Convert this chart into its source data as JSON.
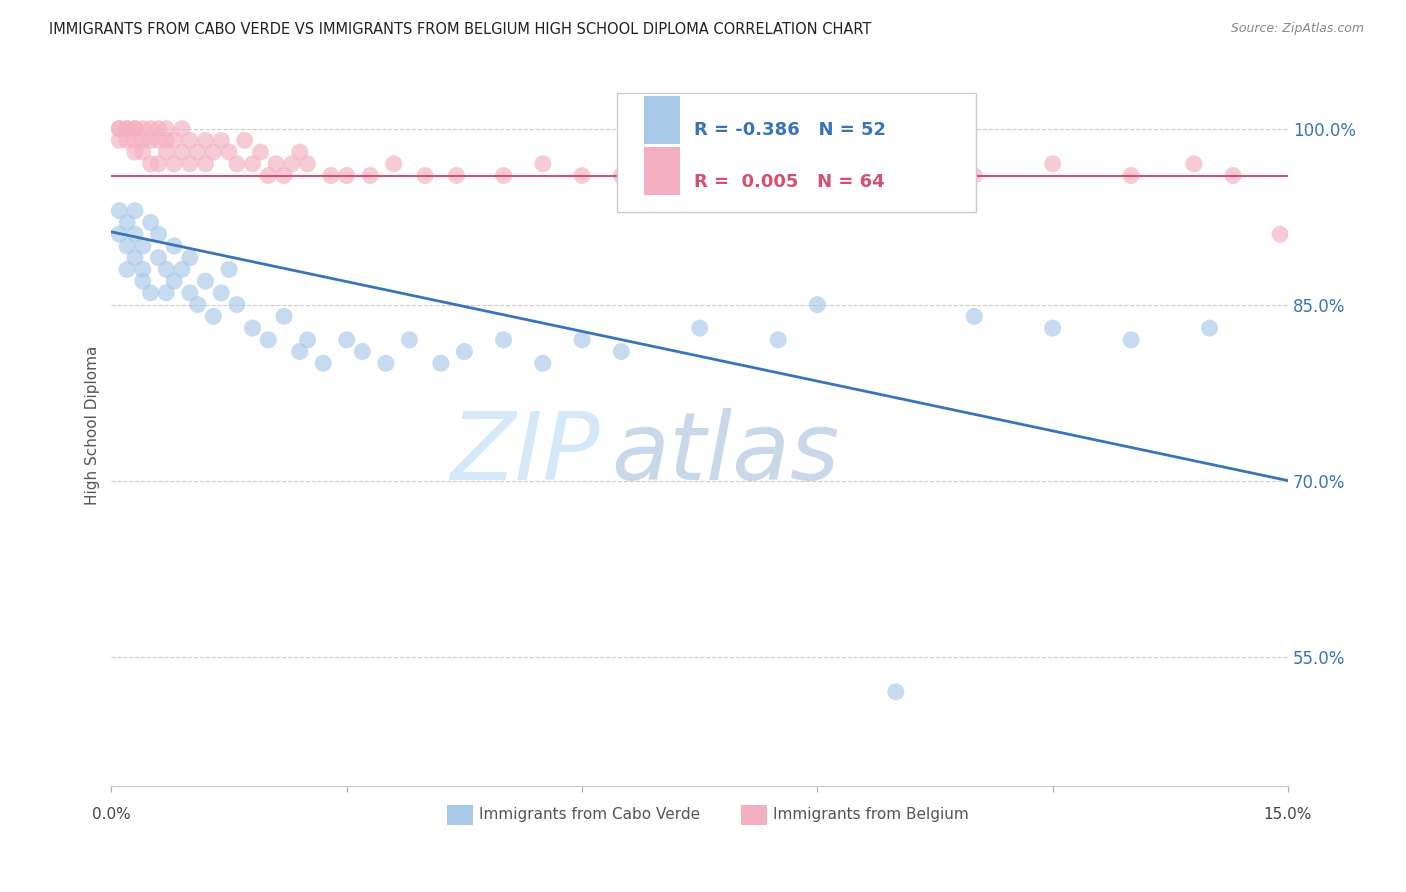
{
  "title": "IMMIGRANTS FROM CABO VERDE VS IMMIGRANTS FROM BELGIUM HIGH SCHOOL DIPLOMA CORRELATION CHART",
  "source": "Source: ZipAtlas.com",
  "ylabel": "High School Diploma",
  "legend_label1": "Immigrants from Cabo Verde",
  "legend_label2": "Immigrants from Belgium",
  "R1": -0.386,
  "N1": 52,
  "R2": 0.005,
  "N2": 64,
  "color1": "#a8c8e8",
  "color2": "#f4b0c0",
  "trendline1_color": "#3a74b8",
  "trendline2_color": "#d45070",
  "watermark_zip": "ZIP",
  "watermark_atlas": "atlas",
  "watermark_color_zip": "#d5e8f8",
  "watermark_color_atlas": "#c8d8e8",
  "xlim": [
    0.0,
    0.15
  ],
  "ylim": [
    0.44,
    1.055
  ],
  "yticks": [
    0.55,
    0.7,
    0.85,
    1.0
  ],
  "ytick_labels": [
    "55.0%",
    "70.0%",
    "85.0%",
    "100.0%"
  ],
  "xtick_positions": [
    0.0,
    0.03,
    0.06,
    0.09,
    0.12,
    0.15
  ],
  "blue_trend_y0": 0.912,
  "blue_trend_y1": 0.7,
  "pink_trend_y": 0.96,
  "cabo_verde_x": [
    0.001,
    0.001,
    0.002,
    0.002,
    0.002,
    0.003,
    0.003,
    0.003,
    0.004,
    0.004,
    0.004,
    0.005,
    0.005,
    0.006,
    0.006,
    0.007,
    0.007,
    0.008,
    0.008,
    0.009,
    0.01,
    0.01,
    0.011,
    0.012,
    0.013,
    0.014,
    0.015,
    0.016,
    0.018,
    0.02,
    0.022,
    0.024,
    0.025,
    0.027,
    0.03,
    0.032,
    0.035,
    0.038,
    0.042,
    0.045,
    0.05,
    0.055,
    0.06,
    0.065,
    0.075,
    0.085,
    0.09,
    0.1,
    0.11,
    0.12,
    0.13,
    0.14
  ],
  "cabo_verde_y": [
    0.93,
    0.91,
    0.92,
    0.9,
    0.88,
    0.91,
    0.89,
    0.93,
    0.88,
    0.9,
    0.87,
    0.92,
    0.86,
    0.89,
    0.91,
    0.88,
    0.86,
    0.9,
    0.87,
    0.88,
    0.89,
    0.86,
    0.85,
    0.87,
    0.84,
    0.86,
    0.88,
    0.85,
    0.83,
    0.82,
    0.84,
    0.81,
    0.82,
    0.8,
    0.82,
    0.81,
    0.8,
    0.82,
    0.8,
    0.81,
    0.82,
    0.8,
    0.82,
    0.81,
    0.83,
    0.82,
    0.85,
    0.52,
    0.84,
    0.83,
    0.82,
    0.83
  ],
  "belgium_x": [
    0.001,
    0.001,
    0.001,
    0.002,
    0.002,
    0.002,
    0.003,
    0.003,
    0.003,
    0.003,
    0.004,
    0.004,
    0.004,
    0.005,
    0.005,
    0.005,
    0.006,
    0.006,
    0.006,
    0.007,
    0.007,
    0.007,
    0.008,
    0.008,
    0.009,
    0.009,
    0.01,
    0.01,
    0.011,
    0.012,
    0.012,
    0.013,
    0.014,
    0.015,
    0.016,
    0.017,
    0.018,
    0.019,
    0.02,
    0.021,
    0.022,
    0.023,
    0.024,
    0.025,
    0.028,
    0.03,
    0.033,
    0.036,
    0.04,
    0.044,
    0.05,
    0.055,
    0.06,
    0.065,
    0.07,
    0.08,
    0.09,
    0.1,
    0.11,
    0.12,
    0.13,
    0.138,
    0.143,
    0.149
  ],
  "belgium_y": [
    1.0,
    0.99,
    1.0,
    1.0,
    0.99,
    1.0,
    1.0,
    0.99,
    0.98,
    1.0,
    1.0,
    0.99,
    0.98,
    1.0,
    0.99,
    0.97,
    1.0,
    0.99,
    0.97,
    1.0,
    0.99,
    0.98,
    0.99,
    0.97,
    1.0,
    0.98,
    0.99,
    0.97,
    0.98,
    0.99,
    0.97,
    0.98,
    0.99,
    0.98,
    0.97,
    0.99,
    0.97,
    0.98,
    0.96,
    0.97,
    0.96,
    0.97,
    0.98,
    0.97,
    0.96,
    0.96,
    0.96,
    0.97,
    0.96,
    0.96,
    0.96,
    0.97,
    0.96,
    0.96,
    0.97,
    0.97,
    0.96,
    0.97,
    0.96,
    0.97,
    0.96,
    0.97,
    0.96,
    0.91
  ]
}
